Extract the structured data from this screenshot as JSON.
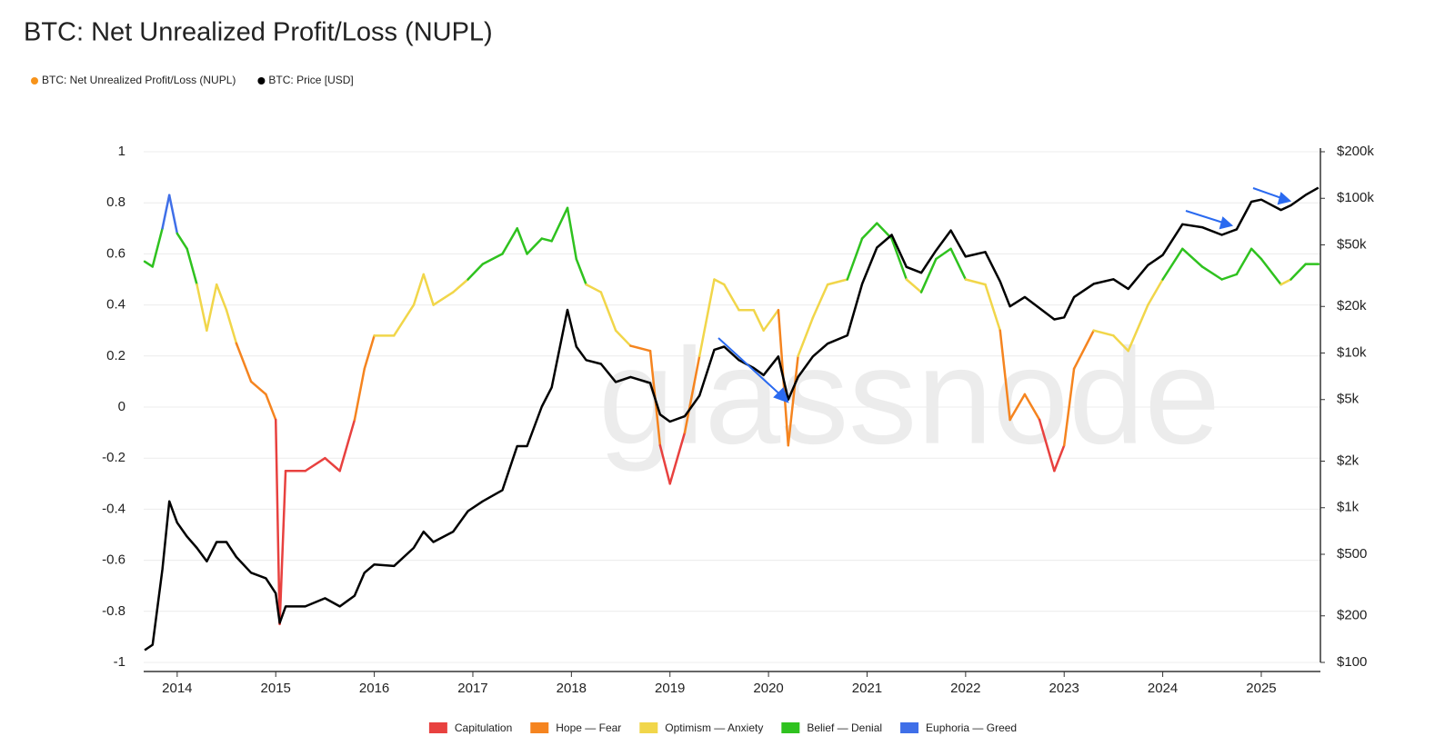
{
  "chart_data": {
    "type": "line",
    "title": "BTC: Net Unrealized Profit/Loss (NUPL)",
    "watermark": "glassnode",
    "x": [
      2013.67,
      2013.75,
      2013.85,
      2013.92,
      2014.0,
      2014.1,
      2014.2,
      2014.3,
      2014.4,
      2014.5,
      2014.6,
      2014.75,
      2014.9,
      2015.0,
      2015.04,
      2015.1,
      2015.3,
      2015.5,
      2015.65,
      2015.8,
      2015.9,
      2016.0,
      2016.2,
      2016.4,
      2016.5,
      2016.6,
      2016.8,
      2016.95,
      2017.1,
      2017.3,
      2017.45,
      2017.55,
      2017.7,
      2017.8,
      2017.96,
      2018.05,
      2018.15,
      2018.3,
      2018.45,
      2018.6,
      2018.8,
      2018.9,
      2019.0,
      2019.15,
      2019.3,
      2019.45,
      2019.55,
      2019.7,
      2019.85,
      2019.95,
      2020.1,
      2020.2,
      2020.3,
      2020.45,
      2020.6,
      2020.8,
      2020.95,
      2021.1,
      2021.25,
      2021.4,
      2021.55,
      2021.7,
      2021.85,
      2022.0,
      2022.2,
      2022.35,
      2022.45,
      2022.6,
      2022.75,
      2022.9,
      2023.0,
      2023.1,
      2023.3,
      2023.5,
      2023.65,
      2023.85,
      2024.0,
      2024.2,
      2024.4,
      2024.6,
      2024.75,
      2024.9,
      2025.0,
      2025.2,
      2025.3,
      2025.45,
      2025.58
    ],
    "series": [
      {
        "name": "BTC: Net Unrealized Profit/Loss (NUPL)",
        "color": "#f7931a",
        "axis": "y",
        "values": [
          0.57,
          0.55,
          0.7,
          0.83,
          0.68,
          0.62,
          0.48,
          0.3,
          0.48,
          0.38,
          0.25,
          0.1,
          0.05,
          -0.05,
          -0.85,
          -0.25,
          -0.25,
          -0.2,
          -0.25,
          -0.05,
          0.15,
          0.28,
          0.28,
          0.4,
          0.52,
          0.4,
          0.45,
          0.5,
          0.56,
          0.6,
          0.7,
          0.6,
          0.66,
          0.65,
          0.78,
          0.58,
          0.48,
          0.45,
          0.3,
          0.24,
          0.22,
          -0.15,
          -0.3,
          -0.1,
          0.2,
          0.5,
          0.48,
          0.38,
          0.38,
          0.3,
          0.38,
          -0.15,
          0.2,
          0.35,
          0.48,
          0.5,
          0.66,
          0.72,
          0.66,
          0.5,
          0.45,
          0.58,
          0.62,
          0.5,
          0.48,
          0.3,
          -0.05,
          0.05,
          -0.05,
          -0.25,
          -0.15,
          0.15,
          0.3,
          0.28,
          0.22,
          0.4,
          0.5,
          0.62,
          0.55,
          0.5,
          0.52,
          0.62,
          0.58,
          0.48,
          0.5,
          0.56,
          0.56
        ]
      },
      {
        "name": "BTC: Price [USD]",
        "color": "#000000",
        "axis": "y2",
        "values": [
          120,
          130,
          400,
          1100,
          800,
          650,
          550,
          450,
          600,
          600,
          480,
          380,
          350,
          280,
          180,
          230,
          230,
          260,
          230,
          270,
          380,
          430,
          420,
          550,
          700,
          600,
          700,
          950,
          1100,
          1300,
          2500,
          2500,
          4500,
          6000,
          19000,
          11000,
          9000,
          8500,
          6500,
          7000,
          6400,
          4000,
          3600,
          3900,
          5300,
          10500,
          11000,
          9000,
          8000,
          7200,
          9500,
          5000,
          7000,
          9500,
          11500,
          13000,
          28000,
          48000,
          58000,
          36000,
          33000,
          46000,
          62000,
          42000,
          45000,
          29000,
          20000,
          23000,
          19500,
          16500,
          17000,
          23000,
          28000,
          30000,
          26000,
          37000,
          43000,
          68000,
          65000,
          58000,
          63000,
          95000,
          98000,
          84000,
          90000,
          105000,
          117000
        ]
      }
    ],
    "zones": [
      {
        "name": "Capitulation",
        "color": "#e8413f",
        "lower": -1
      },
      {
        "name": "Hope — Fear",
        "color": "#f5841f",
        "lower": 0
      },
      {
        "name": "Optimism — Anxiety",
        "color": "#f1d64a",
        "lower": 0.25
      },
      {
        "name": "Belief — Denial",
        "color": "#2fc21f",
        "lower": 0.5
      },
      {
        "name": "Euphoria — Greed",
        "color": "#3f6fe8",
        "lower": 0.75
      }
    ],
    "xlim": [
      2013.66,
      2025.6
    ],
    "xticks": [
      2014,
      2015,
      2016,
      2017,
      2018,
      2019,
      2020,
      2021,
      2022,
      2023,
      2024,
      2025
    ],
    "ylim": [
      -1,
      1
    ],
    "yticks": [
      -1,
      -0.8,
      -0.6,
      -0.4,
      -0.2,
      0,
      0.2,
      0.4,
      0.6,
      0.8,
      1
    ],
    "y2lim": [
      100,
      200000
    ],
    "y2log": true,
    "y2ticks": [
      {
        "value": 100,
        "label": "$100"
      },
      {
        "value": 200,
        "label": "$200"
      },
      {
        "value": 500,
        "label": "$500"
      },
      {
        "value": 1000,
        "label": "$1k"
      },
      {
        "value": 2000,
        "label": "$2k"
      },
      {
        "value": 5000,
        "label": "$5k"
      },
      {
        "value": 10000,
        "label": "$10k"
      },
      {
        "value": 20000,
        "label": "$20k"
      },
      {
        "value": 50000,
        "label": "$50k"
      },
      {
        "value": 100000,
        "label": "$100k"
      },
      {
        "value": 200000,
        "label": "$200k"
      }
    ],
    "grid": true
  }
}
